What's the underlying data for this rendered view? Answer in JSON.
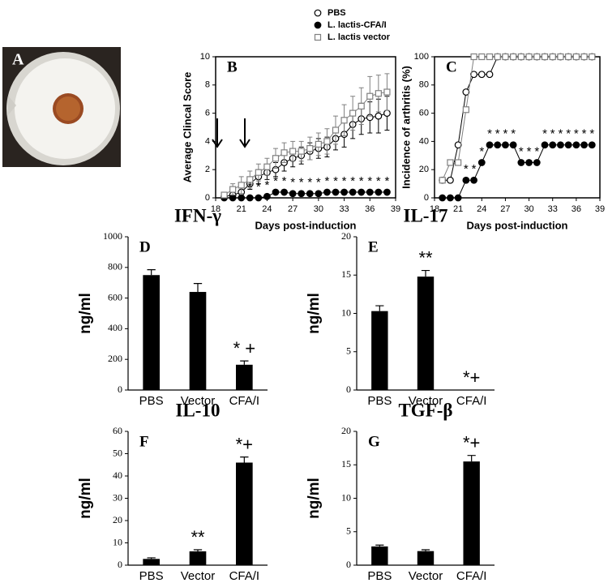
{
  "panel_a": {
    "label": "A"
  },
  "chart_data": [
    {
      "type": "line",
      "panel_label": "B",
      "y_label": "Average Clincal Score",
      "x_label": "Days post-induction",
      "x": [
        19,
        20,
        21,
        22,
        23,
        24,
        25,
        26,
        27,
        28,
        29,
        30,
        31,
        32,
        33,
        34,
        35,
        36,
        37,
        38
      ],
      "xlim": [
        18,
        39
      ],
      "xticks": [
        18,
        21,
        24,
        27,
        30,
        33,
        36,
        39
      ],
      "ylim": [
        0,
        10
      ],
      "yticks": [
        0,
        2,
        4,
        6,
        8,
        10
      ],
      "legend": "top",
      "series": [
        {
          "name": "PBS",
          "marker": "circle-open",
          "color": "#000000",
          "values": [
            0.1,
            0.2,
            0.4,
            1.0,
            1.5,
            1.8,
            2.0,
            2.5,
            2.8,
            3.0,
            3.3,
            3.5,
            3.6,
            4.2,
            4.5,
            5.2,
            5.6,
            5.7,
            5.8,
            6.0
          ],
          "errors": [
            0.1,
            0.2,
            0.3,
            0.4,
            0.5,
            0.5,
            0.5,
            0.6,
            0.6,
            0.6,
            0.6,
            0.7,
            0.7,
            0.8,
            0.9,
            1.0,
            1.1,
            1.1,
            1.2,
            1.2
          ]
        },
        {
          "name": "L. lactis-CFA/I",
          "marker": "circle-filled",
          "color": "#000000",
          "values": [
            0,
            0,
            0,
            0,
            0,
            0.1,
            0.4,
            0.4,
            0.3,
            0.3,
            0.3,
            0.3,
            0.4,
            0.4,
            0.4,
            0.4,
            0.4,
            0.4,
            0.4,
            0.4
          ],
          "errors": [
            0,
            0,
            0,
            0,
            0,
            0.1,
            0.15,
            0.15,
            0.1,
            0.1,
            0.1,
            0.1,
            0.15,
            0.15,
            0.15,
            0.15,
            0.15,
            0.15,
            0.15,
            0.15
          ]
        },
        {
          "name": "L. lactis vector",
          "marker": "square-open",
          "color": "#808080",
          "values": [
            0.2,
            0.6,
            0.9,
            1.3,
            1.8,
            2.2,
            2.8,
            3.2,
            3.3,
            3.3,
            3.5,
            3.8,
            4.0,
            4.8,
            5.5,
            6.0,
            6.5,
            7.2,
            7.4,
            7.5
          ],
          "errors": [
            0.1,
            0.4,
            0.6,
            0.6,
            0.6,
            0.6,
            0.7,
            0.7,
            0.7,
            0.7,
            0.8,
            0.8,
            0.9,
            1.0,
            1.1,
            1.2,
            1.3,
            1.4,
            1.3,
            1.3
          ]
        }
      ],
      "sig_labels": [
        null,
        null,
        null,
        "*",
        "*",
        "*",
        "*",
        "*",
        "*",
        "*",
        "*",
        "*",
        "*",
        "*",
        "*",
        "*",
        "*",
        "*",
        "*",
        "*"
      ]
    },
    {
      "type": "line",
      "panel_label": "C",
      "y_label": "Incidence of arthritis (%)",
      "x_label": "Days post-induction",
      "x": [
        19,
        20,
        21,
        22,
        23,
        24,
        25,
        26,
        27,
        28,
        29,
        30,
        31,
        32,
        33,
        34,
        35,
        36,
        37,
        38
      ],
      "xlim": [
        18,
        39
      ],
      "xticks": [
        18,
        21,
        24,
        27,
        30,
        33,
        36,
        39
      ],
      "ylim": [
        0,
        100
      ],
      "yticks": [
        0,
        20,
        40,
        60,
        80,
        100
      ],
      "series": [
        {
          "marker": "circle-open",
          "color": "#000000",
          "values": [
            12.5,
            12.5,
            37.5,
            75,
            87.5,
            87.5,
            87.5,
            100,
            100,
            100,
            100,
            100,
            100,
            100,
            100,
            100,
            100,
            100,
            100,
            100
          ]
        },
        {
          "marker": "circle-filled",
          "color": "#000000",
          "values": [
            0,
            0,
            0,
            12.5,
            12.5,
            25,
            37.5,
            37.5,
            37.5,
            37.5,
            25,
            25,
            25,
            37.5,
            37.5,
            37.5,
            37.5,
            37.5,
            37.5,
            37.5
          ]
        },
        {
          "marker": "square-open",
          "color": "#808080",
          "values": [
            12.5,
            25,
            25,
            62.5,
            100,
            100,
            100,
            100,
            100,
            100,
            100,
            100,
            100,
            100,
            100,
            100,
            100,
            100,
            100,
            100
          ]
        }
      ],
      "sig_labels": [
        null,
        null,
        null,
        "*",
        "*",
        "*",
        "*",
        "*",
        "*",
        "*",
        "*",
        "*",
        "*",
        "*",
        "*",
        "*",
        "*",
        "*",
        "*",
        "*"
      ]
    },
    {
      "type": "bar",
      "panel_label": "D",
      "title": "IFN-γ",
      "y_label": "ng/ml",
      "color": "#000000",
      "categories": [
        "PBS",
        "Vector",
        "CFA/I"
      ],
      "values": [
        750,
        640,
        165
      ],
      "errors": [
        35,
        55,
        25
      ],
      "bar_annotations": [
        null,
        null,
        "* +"
      ],
      "ylim": [
        0,
        1000
      ],
      "yticks": [
        0,
        200,
        400,
        600,
        800,
        1000
      ]
    },
    {
      "type": "bar",
      "panel_label": "E",
      "title": "IL-17",
      "y_label": "ng/ml",
      "color": "#000000",
      "categories": [
        "PBS",
        "Vector",
        "CFA/I"
      ],
      "values": [
        10.3,
        14.8,
        0
      ],
      "errors": [
        0.7,
        0.8,
        null
      ],
      "bar_annotations": [
        null,
        "**",
        "*+"
      ],
      "ylim": [
        0,
        20
      ],
      "yticks": [
        0,
        5,
        10,
        15,
        20
      ]
    },
    {
      "type": "bar",
      "panel_label": "F",
      "title": "IL-10",
      "y_label": "ng/ml",
      "color": "#000000",
      "categories": [
        "PBS",
        "Vector",
        "CFA/I"
      ],
      "values": [
        2.8,
        6.2,
        46
      ],
      "errors": [
        0.5,
        0.7,
        2.5
      ],
      "bar_annotations": [
        null,
        "**",
        "*+"
      ],
      "ylim": [
        0,
        60
      ],
      "yticks": [
        0,
        10,
        20,
        30,
        40,
        50,
        60
      ]
    },
    {
      "type": "bar",
      "panel_label": "G",
      "title": "TGF-β",
      "y_label": "ng/ml",
      "color": "#000000",
      "categories": [
        "PBS",
        "Vector",
        "CFA/I"
      ],
      "values": [
        2.8,
        2.1,
        15.5
      ],
      "errors": [
        0.2,
        0.2,
        0.9
      ],
      "bar_annotations": [
        null,
        null,
        "*+"
      ],
      "ylim": [
        0,
        20
      ],
      "yticks": [
        0,
        5,
        10,
        15,
        20
      ]
    }
  ]
}
